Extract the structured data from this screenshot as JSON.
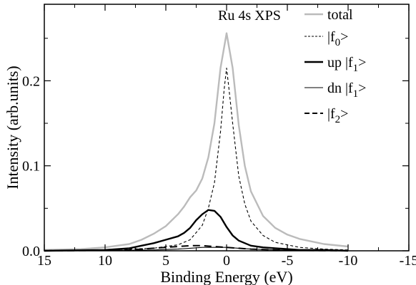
{
  "chart_data": {
    "type": "line",
    "title": "",
    "annotation": "Ru 4s XPS",
    "xlabel": "Binding Energy (eV)",
    "ylabel": "Intensity (arb.units)",
    "xlim": [
      15,
      -15
    ],
    "ylim": [
      0,
      0.29
    ],
    "x_reversed": true,
    "grid": false,
    "legend_position": "top-right",
    "x_ticks": [
      15,
      10,
      5,
      0,
      -5,
      -10,
      -15
    ],
    "x_tick_labels": [
      "15",
      "10",
      "5",
      "0",
      "-5",
      "-10",
      "-15"
    ],
    "y_ticks": [
      0,
      0.1,
      0.2
    ],
    "y_tick_labels": [
      "0.0",
      "0.1",
      "0.2"
    ],
    "series": [
      {
        "name": "total",
        "color": "#bbbbbb",
        "dash": "solid",
        "width": "thick",
        "x": [
          15,
          12,
          10,
          8,
          7,
          6,
          5,
          4,
          3.5,
          3,
          2.5,
          2,
          1.5,
          1,
          0.5,
          0,
          -0.5,
          -1,
          -1.5,
          -2,
          -3,
          -4,
          -5,
          -6,
          -8,
          -10
        ],
        "y": [
          0.001,
          0.002,
          0.004,
          0.008,
          0.013,
          0.02,
          0.029,
          0.043,
          0.052,
          0.063,
          0.071,
          0.085,
          0.11,
          0.15,
          0.215,
          0.256,
          0.215,
          0.148,
          0.1,
          0.07,
          0.041,
          0.027,
          0.019,
          0.014,
          0.008,
          0.005
        ]
      },
      {
        "name": "|f0>",
        "color": "#000000",
        "dash": "fine-dash",
        "width": "thin",
        "x": [
          15,
          10,
          6,
          4,
          3,
          2,
          1.5,
          1,
          0.5,
          0.2,
          0,
          -0.2,
          -0.5,
          -1,
          -1.5,
          -2,
          -3,
          -4,
          -6,
          -8,
          -10
        ],
        "y": [
          0.0005,
          0.001,
          0.003,
          0.007,
          0.013,
          0.03,
          0.05,
          0.08,
          0.14,
          0.19,
          0.215,
          0.19,
          0.15,
          0.088,
          0.055,
          0.035,
          0.018,
          0.01,
          0.004,
          0.002,
          0.001
        ]
      },
      {
        "name": "up |f1>",
        "color": "#000000",
        "dash": "solid",
        "width": "thick",
        "x": [
          15,
          10,
          8,
          7,
          6,
          5,
          4,
          3.5,
          3,
          2.5,
          2,
          1.5,
          1,
          0.5,
          0,
          -0.5,
          -1,
          -2,
          -3,
          -4,
          -5,
          -6,
          -8,
          -10
        ],
        "y": [
          0.0,
          0.001,
          0.003,
          0.006,
          0.009,
          0.013,
          0.017,
          0.021,
          0.027,
          0.036,
          0.043,
          0.048,
          0.047,
          0.04,
          0.028,
          0.018,
          0.012,
          0.006,
          0.004,
          0.003,
          0.002,
          0.001,
          0.001,
          0.0
        ]
      },
      {
        "name": "dn |f1>",
        "color": "#000000",
        "dash": "solid",
        "width": "thin",
        "x": [
          15,
          10,
          6,
          4,
          3,
          2,
          1,
          0,
          -1,
          -2,
          -4,
          -6,
          -10
        ],
        "y": [
          0.0,
          0.0005,
          0.001,
          0.002,
          0.003,
          0.004,
          0.004,
          0.004,
          0.003,
          0.002,
          0.001,
          0.0005,
          0.0
        ]
      },
      {
        "name": "|f2>",
        "color": "#000000",
        "dash": "long-dash",
        "width": "medium",
        "x": [
          15,
          10,
          8,
          6,
          5,
          4,
          3,
          2,
          1,
          0,
          -1,
          -2,
          -4,
          -6,
          -10
        ],
        "y": [
          0.0,
          0.0005,
          0.001,
          0.003,
          0.004,
          0.005,
          0.006,
          0.006,
          0.005,
          0.004,
          0.003,
          0.002,
          0.001,
          0.0005,
          0.0
        ]
      }
    ]
  }
}
